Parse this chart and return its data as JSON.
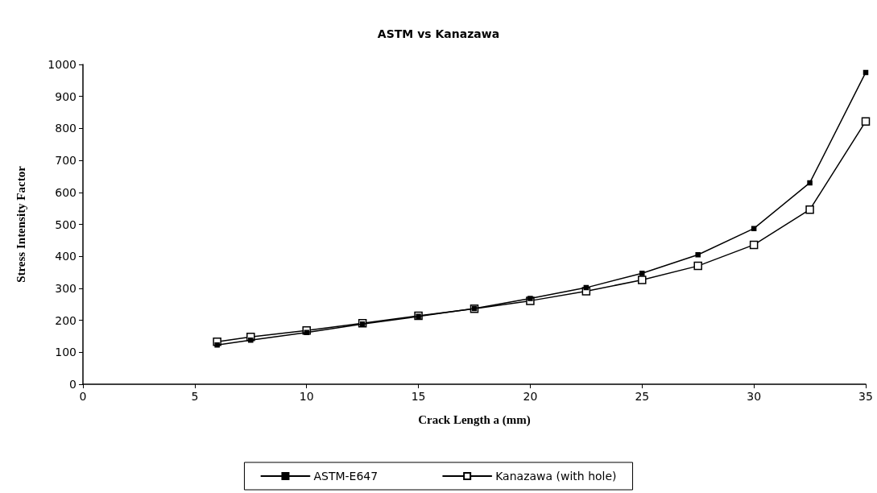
{
  "chart_data": {
    "type": "line",
    "title": "ASTM vs Kanazawa",
    "xlabel": "Crack Length a (mm)",
    "ylabel": "Stress Intensity Factor",
    "x": [
      6,
      7.5,
      10,
      12.5,
      15,
      17.5,
      20,
      22.5,
      25,
      27.5,
      30,
      32.5,
      35
    ],
    "series": [
      {
        "name": "ASTM-E647",
        "color": "#000000",
        "values": [
          123,
          138,
          162,
          188,
          212,
          237,
          268,
          302,
          347,
          405,
          487,
          630,
          975
        ]
      },
      {
        "name": "Kanazawa (with hole)",
        "color": "#000000",
        "values": [
          133,
          148,
          168,
          191,
          214,
          236,
          261,
          291,
          326,
          370,
          436,
          546,
          822
        ]
      }
    ],
    "xlim": [
      0,
      35
    ],
    "xticks": [
      0,
      5,
      10,
      15,
      20,
      25,
      30,
      35
    ],
    "ylim": [
      0,
      1000
    ],
    "yticks": [
      0,
      100,
      200,
      300,
      400,
      500,
      600,
      700,
      800,
      900,
      1000
    ],
    "grid": false,
    "legend": "bottom",
    "marker": "square",
    "line_style": "solid"
  }
}
